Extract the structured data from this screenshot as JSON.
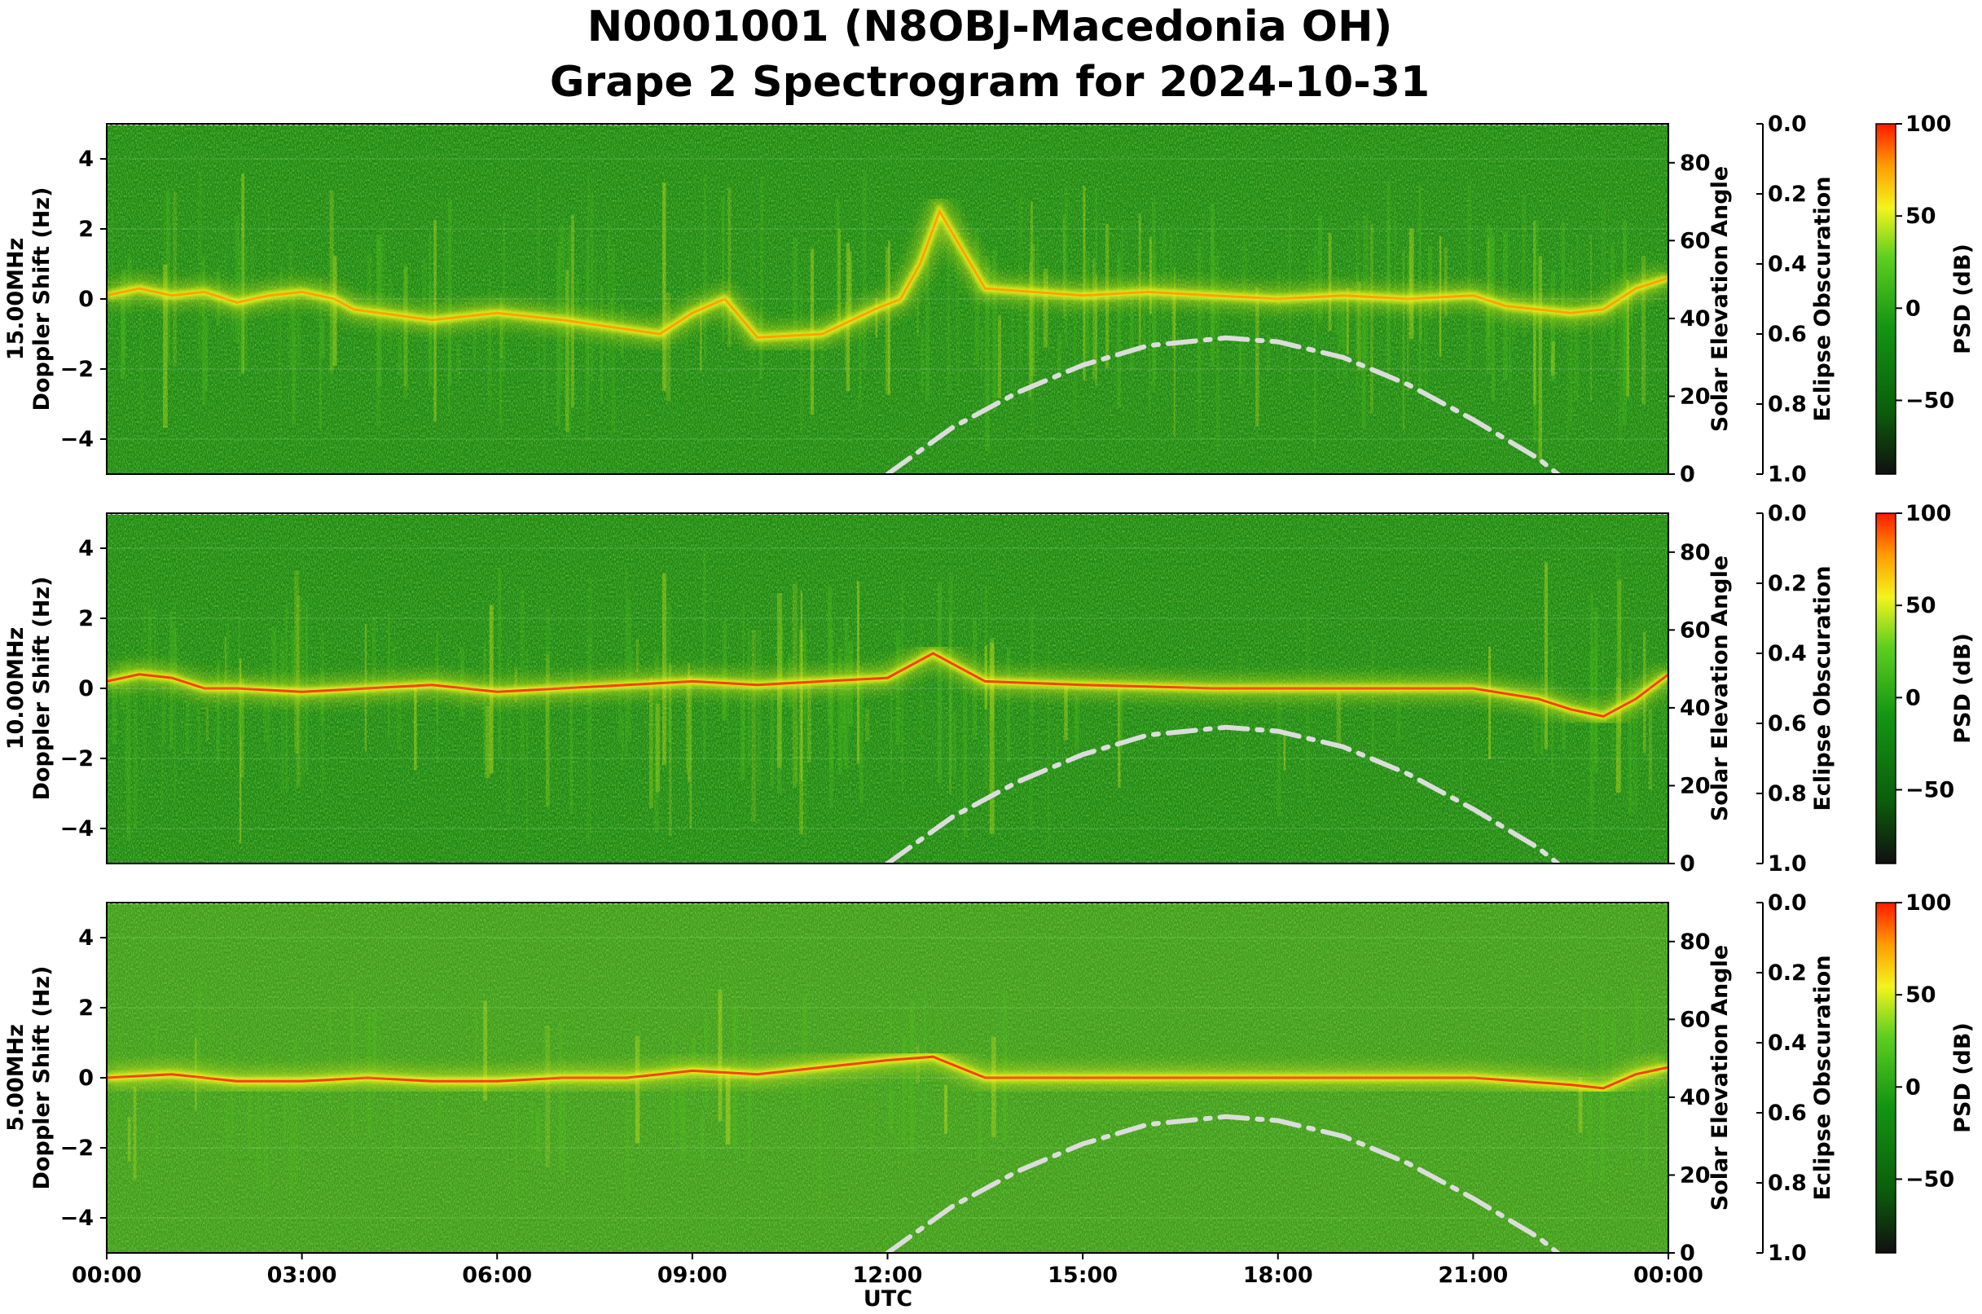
{
  "title_line1": "N0001001 (N8OBJ-Macedonia OH)",
  "title_line2": "Grape 2 Spectrogram for 2024-10-31",
  "colors": {
    "background_green": "#1e8a14",
    "bright_green": "#53c21a",
    "yellow": "#f3f41c",
    "orange": "#ff9900",
    "red": "#ff2200",
    "solar_curve": "#dcdcdc",
    "colorbar_stops": [
      "#101010",
      "#0b5e0b",
      "#139513",
      "#5fcf1f",
      "#f3f41c",
      "#ff9d00",
      "#ff1a00"
    ]
  },
  "chart_data": [
    {
      "type": "heatmap",
      "panel": "15.00MHz",
      "ylabel_line1": "15.00MHz",
      "ylabel_line2": "Doppler Shift (Hz)",
      "ylim": [
        -5,
        5
      ],
      "yticks": [
        -4,
        -2,
        0,
        2,
        4
      ],
      "x_range_hours": [
        0,
        24
      ],
      "right_axis": {
        "label": "Solar Elevation Angle",
        "range": [
          0,
          90
        ],
        "ticks": [
          0,
          20,
          40,
          60,
          80
        ]
      },
      "eclipse_axis": {
        "label": "Eclipse Obscuration",
        "range": [
          0.0,
          1.0
        ],
        "ticks": [
          "0.0",
          "0.2",
          "0.4",
          "0.6",
          "0.8",
          "1.0"
        ],
        "inverted": true
      },
      "colorbar": {
        "label": "PSD (dB)",
        "range": [
          -90,
          100
        ],
        "ticks": [
          100,
          50,
          0,
          -50
        ]
      },
      "doppler_trace_hz": {
        "hours": [
          0,
          0.5,
          1,
          1.5,
          2,
          2.5,
          3,
          3.5,
          3.8,
          5,
          6,
          7,
          8.5,
          9,
          9.5,
          10,
          11,
          11.8,
          12.2,
          12.5,
          12.8,
          13.5,
          15,
          16,
          17,
          18,
          19,
          20,
          21,
          21.5,
          22,
          22.5,
          23,
          23.5,
          24
        ],
        "values": [
          0.1,
          0.3,
          0.1,
          0.2,
          -0.1,
          0.1,
          0.2,
          0.0,
          -0.3,
          -0.6,
          -0.4,
          -0.6,
          -1.0,
          -0.4,
          0.0,
          -1.1,
          -1.0,
          -0.3,
          0.0,
          1.0,
          2.5,
          0.3,
          0.1,
          0.2,
          0.1,
          0.0,
          0.1,
          0.0,
          0.1,
          -0.2,
          -0.3,
          -0.4,
          -0.3,
          0.3,
          0.6
        ]
      },
      "solar_elevation_deg": {
        "hours": [
          12.0,
          12.5,
          13,
          14,
          15,
          16,
          17.2,
          18,
          19,
          20,
          21,
          22,
          22.3
        ],
        "values": [
          0,
          6,
          12,
          21,
          28,
          33,
          35,
          34,
          30,
          23,
          14,
          4,
          0
        ]
      }
    },
    {
      "type": "heatmap",
      "panel": "10.00MHz",
      "ylabel_line1": "10.00MHz",
      "ylabel_line2": "Doppler Shift (Hz)",
      "ylim": [
        -5,
        5
      ],
      "yticks": [
        -4,
        -2,
        0,
        2,
        4
      ],
      "x_range_hours": [
        0,
        24
      ],
      "right_axis": {
        "label": "Solar Elevation Angle",
        "range": [
          0,
          90
        ],
        "ticks": [
          0,
          20,
          40,
          60,
          80
        ]
      },
      "eclipse_axis": {
        "label": "Eclipse Obscuration",
        "range": [
          0.0,
          1.0
        ],
        "ticks": [
          "0.0",
          "0.2",
          "0.4",
          "0.6",
          "0.8",
          "1.0"
        ],
        "inverted": true
      },
      "colorbar": {
        "label": "PSD (dB)",
        "range": [
          -90,
          100
        ],
        "ticks": [
          100,
          50,
          0,
          -50
        ]
      },
      "doppler_trace_hz": {
        "hours": [
          0,
          0.5,
          1,
          1.5,
          2,
          3,
          4,
          5,
          6,
          7,
          8,
          9,
          10,
          11,
          12,
          12.7,
          13.5,
          15,
          17,
          19,
          21,
          22,
          22.5,
          23,
          23.5,
          24
        ],
        "values": [
          0.2,
          0.4,
          0.3,
          0.0,
          0.0,
          -0.1,
          0.0,
          0.1,
          -0.1,
          0.0,
          0.1,
          0.2,
          0.1,
          0.2,
          0.3,
          1.0,
          0.2,
          0.1,
          0.0,
          0.0,
          0.0,
          -0.3,
          -0.6,
          -0.8,
          -0.3,
          0.4
        ]
      },
      "solar_elevation_deg": {
        "hours": [
          12.0,
          12.5,
          13,
          14,
          15,
          16,
          17.2,
          18,
          19,
          20,
          21,
          22,
          22.3
        ],
        "values": [
          0,
          6,
          12,
          21,
          28,
          33,
          35,
          34,
          30,
          23,
          14,
          4,
          0
        ]
      }
    },
    {
      "type": "heatmap",
      "panel": "5.00MHz",
      "ylabel_line1": "5.00MHz",
      "ylabel_line2": "Doppler Shift (Hz)",
      "ylim": [
        -5,
        5
      ],
      "yticks": [
        -4,
        -2,
        0,
        2,
        4
      ],
      "x_range_hours": [
        0,
        24
      ],
      "right_axis": {
        "label": "Solar Elevation Angle",
        "range": [
          0,
          90
        ],
        "ticks": [
          0,
          20,
          40,
          60,
          80
        ]
      },
      "eclipse_axis": {
        "label": "Eclipse Obscuration",
        "range": [
          0.0,
          1.0
        ],
        "ticks": [
          "0.0",
          "0.2",
          "0.4",
          "0.6",
          "0.8",
          "1.0"
        ],
        "inverted": true
      },
      "colorbar": {
        "label": "PSD (dB)",
        "range": [
          -90,
          100
        ],
        "ticks": [
          100,
          50,
          0,
          -50
        ]
      },
      "doppler_trace_hz": {
        "hours": [
          0,
          1,
          2,
          3,
          4,
          5,
          6,
          7,
          8,
          9,
          10,
          11,
          12,
          12.7,
          13.5,
          15,
          18,
          21,
          22.5,
          23,
          23.5,
          24
        ],
        "values": [
          0.0,
          0.1,
          -0.1,
          -0.1,
          0.0,
          -0.1,
          -0.1,
          0.0,
          0.0,
          0.2,
          0.1,
          0.3,
          0.5,
          0.6,
          0.0,
          0.0,
          0.0,
          0.0,
          -0.2,
          -0.3,
          0.1,
          0.3
        ]
      },
      "solar_elevation_deg": {
        "hours": [
          12.0,
          12.5,
          13,
          14,
          15,
          16,
          17.2,
          18,
          19,
          20,
          21,
          22,
          22.3
        ],
        "values": [
          0,
          6,
          12,
          21,
          28,
          33,
          35,
          34,
          30,
          23,
          14,
          4,
          0
        ]
      }
    }
  ],
  "x_axis": {
    "label": "UTC",
    "ticks": [
      {
        "hour": 0,
        "label": "00:00"
      },
      {
        "hour": 3,
        "label": "03:00"
      },
      {
        "hour": 6,
        "label": "06:00"
      },
      {
        "hour": 9,
        "label": "09:00"
      },
      {
        "hour": 12,
        "label": "12:00"
      },
      {
        "hour": 15,
        "label": "15:00"
      },
      {
        "hour": 18,
        "label": "18:00"
      },
      {
        "hour": 21,
        "label": "21:00"
      },
      {
        "hour": 24,
        "label": "00:00"
      }
    ]
  }
}
